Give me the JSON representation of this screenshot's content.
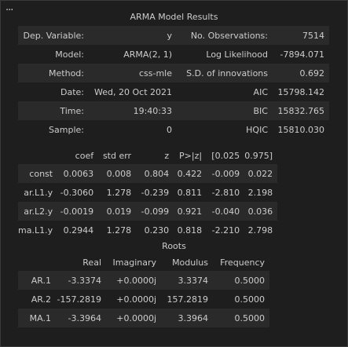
{
  "title": "ARMA Model Results",
  "summary": [
    [
      "Dep. Variable:",
      "y",
      "No. Observations:",
      "7514"
    ],
    [
      "Model:",
      "ARMA(2, 1)",
      "Log Likelihood",
      "-7894.071"
    ],
    [
      "Method:",
      "css-mle",
      "S.D. of innovations",
      "0.692"
    ],
    [
      "Date:",
      "Wed, 20 Oct 2021",
      "AIC",
      "15798.142"
    ],
    [
      "Time:",
      "19:40:33",
      "BIC",
      "15832.765"
    ],
    [
      "Sample:",
      "0",
      "HQIC",
      "15810.030"
    ]
  ],
  "coef_headers": [
    "coef",
    "std err",
    "z",
    "P>|z|",
    "[0.025",
    "0.975]"
  ],
  "coef_rows": [
    [
      "const",
      "0.0063",
      "0.008",
      "0.804",
      "0.422",
      "-0.009",
      "0.022"
    ],
    [
      "ar.L1.y",
      "-0.3060",
      "1.278",
      "-0.239",
      "0.811",
      "-2.810",
      "2.198"
    ],
    [
      "ar.L2.y",
      "-0.0019",
      "0.019",
      "-0.099",
      "0.921",
      "-0.040",
      "0.036"
    ],
    [
      "ma.L1.y",
      "0.2944",
      "1.278",
      "0.230",
      "0.818",
      "-2.210",
      "2.798"
    ]
  ],
  "roots_title": "Roots",
  "roots_headers": [
    "Real",
    "Imaginary",
    "Modulus",
    "Frequency"
  ],
  "roots_rows": [
    [
      "AR.1",
      "-3.3374",
      "+0.0000j",
      "3.3374",
      "0.5000"
    ],
    [
      "AR.2",
      "-157.2819",
      "+0.0000j",
      "157.2819",
      "0.5000"
    ],
    [
      "MA.1",
      "-3.3964",
      "+0.0000j",
      "3.3964",
      "0.5000"
    ]
  ],
  "menu_icon": "more-horizontal-icon"
}
